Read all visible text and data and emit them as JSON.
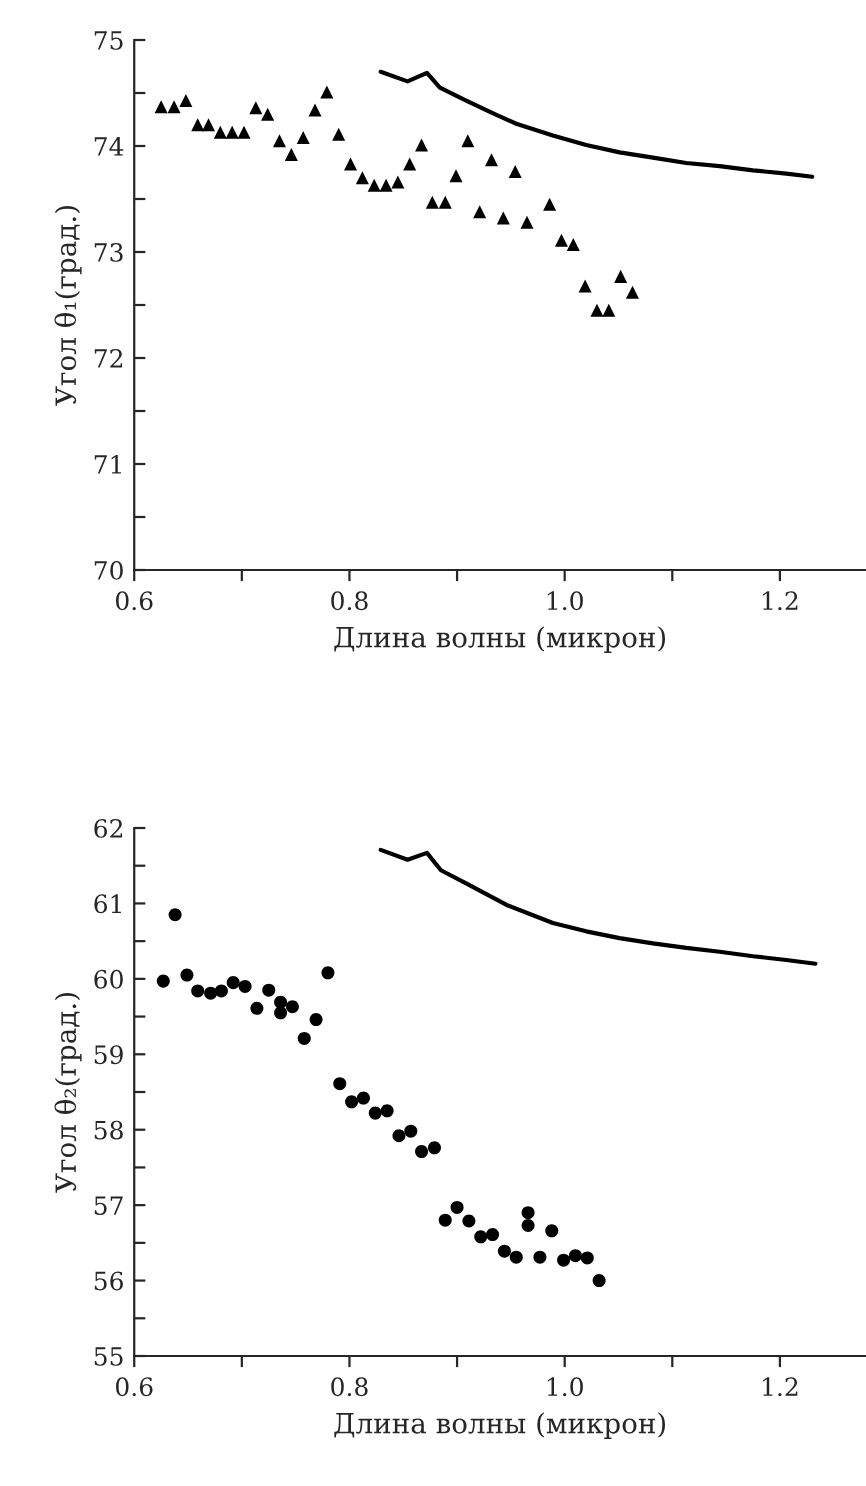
{
  "chart_data": [
    {
      "type": "scatter",
      "xlabel": "Длина волны (микрон)",
      "ylabel": "Угол θ₁(град.)",
      "xlim": [
        0.6,
        1.28
      ],
      "xticks": [
        0.6,
        {
          "value": 0.7,
          "label": null
        },
        0.8,
        {
          "value": 0.9,
          "label": null
        },
        {
          "value": 1.0,
          "label": "1.0"
        },
        {
          "value": 1.1,
          "label": null
        },
        1.2
      ],
      "ylim": [
        70,
        75
      ],
      "yticks": [
        70,
        {
          "value": 70.5,
          "label": null
        },
        71,
        {
          "value": 71.5,
          "label": null
        },
        72,
        {
          "value": 72.5,
          "label": null
        },
        73,
        {
          "value": 73.5,
          "label": null
        },
        74,
        {
          "value": 74.5,
          "label": null
        },
        75
      ],
      "grid": false,
      "series": [
        {
          "marker": "triangle",
          "color": "#000000",
          "x": [
            0.625,
            0.637,
            0.648,
            0.659,
            0.669,
            0.68,
            0.691,
            0.702,
            0.713,
            0.724,
            0.735,
            0.746,
            0.757,
            0.768,
            0.779,
            0.79,
            0.801,
            0.812,
            0.823,
            0.834,
            0.845,
            0.856,
            0.867,
            0.877,
            0.889,
            0.899,
            0.91,
            0.921,
            0.932,
            0.943,
            0.954,
            0.965,
            0.986,
            0.997,
            1.008,
            1.019,
            1.03,
            1.041,
            1.052,
            1.063
          ],
          "values": [
            74.37,
            74.37,
            74.43,
            74.2,
            74.2,
            74.13,
            74.13,
            74.13,
            74.36,
            74.3,
            74.05,
            73.92,
            74.08,
            74.34,
            74.51,
            74.11,
            73.83,
            73.7,
            73.63,
            73.63,
            73.66,
            73.83,
            74.01,
            73.47,
            73.47,
            73.72,
            74.05,
            73.38,
            73.87,
            73.32,
            73.76,
            73.28,
            73.45,
            73.11,
            73.07,
            72.68,
            72.45,
            72.45,
            72.77,
            72.62
          ]
        },
        {
          "type": "line",
          "color": "#000000",
          "x": [
            0.829,
            0.854,
            0.872,
            0.884,
            0.908,
            0.933,
            0.955,
            0.989,
            1.02,
            1.051,
            1.082,
            1.113,
            1.144,
            1.175,
            1.206,
            1.23
          ],
          "values": [
            74.7,
            74.61,
            74.69,
            74.55,
            74.43,
            74.31,
            74.21,
            74.1,
            74.01,
            73.94,
            73.89,
            73.84,
            73.81,
            73.77,
            73.74,
            73.71
          ]
        }
      ]
    },
    {
      "type": "scatter",
      "xlabel": "Длина волны (микрон)",
      "ylabel": "Угол θ₂(град.)",
      "xlim": [
        0.6,
        1.28
      ],
      "xticks": [
        0.6,
        {
          "value": 0.7,
          "label": null
        },
        0.8,
        {
          "value": 0.9,
          "label": null
        },
        {
          "value": 1.0,
          "label": "1.0"
        },
        {
          "value": 1.1,
          "label": null
        },
        1.2
      ],
      "ylim": [
        55,
        62
      ],
      "yticks": [
        55,
        {
          "value": 55.5,
          "label": null
        },
        56,
        {
          "value": 56.5,
          "label": null
        },
        57,
        {
          "value": 57.5,
          "label": null
        },
        58,
        {
          "value": 58.5,
          "label": null
        },
        59,
        {
          "value": 59.5,
          "label": null
        },
        60,
        {
          "value": 60.5,
          "label": null
        },
        61,
        {
          "value": 61.5,
          "label": null
        },
        62
      ],
      "grid": false,
      "series": [
        {
          "marker": "circle",
          "color": "#000000",
          "x": [
            0.627,
            0.638,
            0.649,
            0.659,
            0.671,
            0.681,
            0.692,
            0.703,
            0.714,
            0.725,
            0.736,
            0.736,
            0.747,
            0.758,
            0.769,
            0.78,
            0.791,
            0.802,
            0.813,
            0.824,
            0.835,
            0.846,
            0.857,
            0.867,
            0.879,
            0.889,
            0.9,
            0.911,
            0.922,
            0.933,
            0.944,
            0.955,
            0.966,
            0.966,
            0.977,
            0.988,
            0.999,
            1.01,
            1.021,
            1.032
          ],
          "values": [
            59.97,
            60.85,
            60.05,
            59.84,
            59.81,
            59.84,
            59.95,
            59.9,
            59.61,
            59.85,
            59.69,
            59.55,
            59.63,
            59.21,
            59.46,
            60.08,
            58.61,
            58.37,
            58.42,
            58.22,
            58.25,
            57.92,
            57.98,
            57.71,
            57.76,
            56.8,
            56.97,
            56.79,
            56.58,
            56.61,
            56.39,
            56.31,
            56.9,
            56.73,
            56.31,
            56.66,
            56.27,
            56.33,
            56.3,
            56.0
          ]
        },
        {
          "type": "line",
          "color": "#000000",
          "x": [
            0.829,
            0.854,
            0.872,
            0.885,
            0.908,
            0.946,
            0.989,
            1.02,
            1.051,
            1.082,
            1.113,
            1.144,
            1.175,
            1.206,
            1.233
          ],
          "values": [
            61.71,
            61.58,
            61.67,
            61.44,
            61.27,
            60.98,
            60.74,
            60.63,
            60.54,
            60.47,
            60.41,
            60.36,
            60.3,
            60.25,
            60.2
          ]
        }
      ]
    }
  ]
}
